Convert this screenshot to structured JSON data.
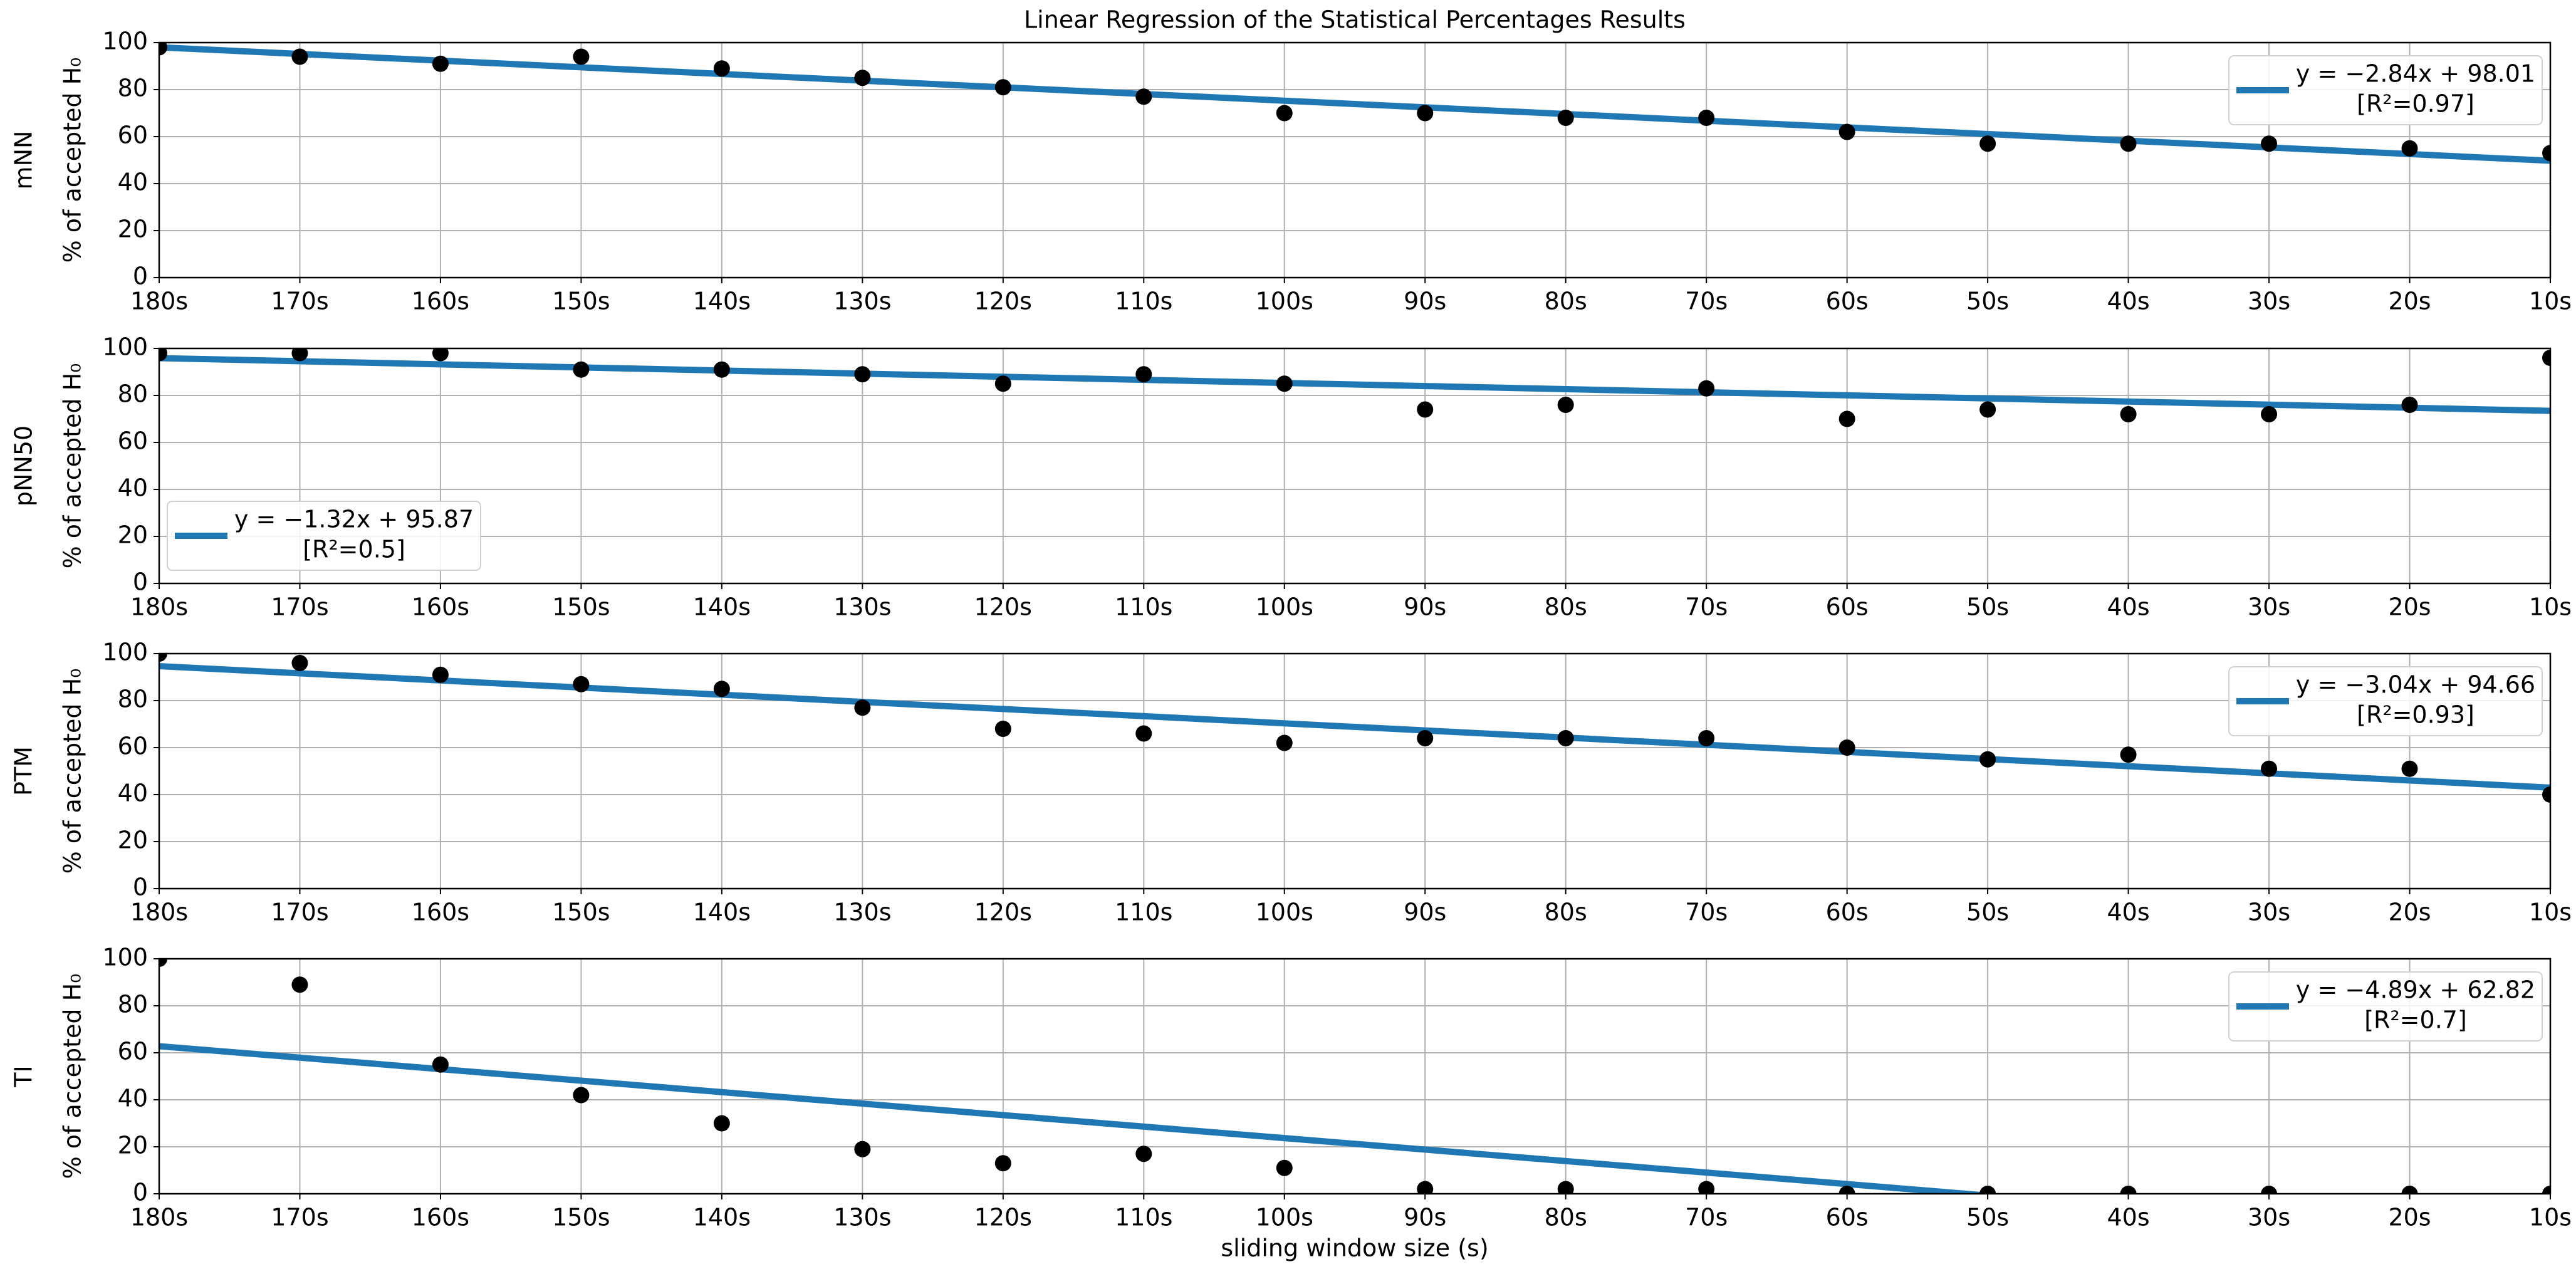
{
  "chart_data": [
    {
      "type": "scatter",
      "title": "Linear Regression of the Statistical Percentages Results",
      "panel_label": "mNN",
      "ylabel": "% of accepted H₀",
      "categories": [
        "180s",
        "170s",
        "160s",
        "150s",
        "140s",
        "130s",
        "120s",
        "110s",
        "100s",
        "90s",
        "80s",
        "70s",
        "60s",
        "50s",
        "40s",
        "30s",
        "20s",
        "10s"
      ],
      "values": [
        98,
        94,
        91,
        94,
        89,
        85,
        81,
        77,
        70,
        70,
        68,
        68,
        62,
        57,
        57,
        57,
        55,
        53
      ],
      "color": "#000000",
      "ylim": [
        0,
        100
      ],
      "yticks": [
        0,
        20,
        40,
        60,
        80,
        100
      ],
      "grid": true,
      "legend": "upper right",
      "fit": {
        "slope": -2.84,
        "intercept": 98.01,
        "color": "#1f77b4",
        "label": "y = −2.84x + 98.01",
        "r2_label": "[R²=0.97]"
      }
    },
    {
      "type": "scatter",
      "panel_label": "pNN50",
      "ylabel": "% of accepted H₀",
      "categories": [
        "180s",
        "170s",
        "160s",
        "150s",
        "140s",
        "130s",
        "120s",
        "110s",
        "100s",
        "90s",
        "80s",
        "70s",
        "60s",
        "50s",
        "40s",
        "30s",
        "20s",
        "10s"
      ],
      "values": [
        98,
        98,
        98,
        91,
        91,
        89,
        85,
        89,
        85,
        74,
        76,
        83,
        70,
        74,
        72,
        72,
        76,
        96
      ],
      "color": "#000000",
      "ylim": [
        0,
        100
      ],
      "yticks": [
        0,
        20,
        40,
        60,
        80,
        100
      ],
      "grid": true,
      "legend": "lower left",
      "fit": {
        "slope": -1.32,
        "intercept": 95.87,
        "color": "#1f77b4",
        "label": "y = −1.32x + 95.87",
        "r2_label": "[R²=0.5]"
      }
    },
    {
      "type": "scatter",
      "panel_label": "PTM",
      "ylabel": "% of accepted H₀",
      "categories": [
        "180s",
        "170s",
        "160s",
        "150s",
        "140s",
        "130s",
        "120s",
        "110s",
        "100s",
        "90s",
        "80s",
        "70s",
        "60s",
        "50s",
        "40s",
        "30s",
        "20s",
        "10s"
      ],
      "values": [
        100,
        96,
        91,
        87,
        85,
        77,
        68,
        66,
        62,
        64,
        64,
        64,
        60,
        55,
        57,
        51,
        51,
        40
      ],
      "color": "#000000",
      "ylim": [
        0,
        100
      ],
      "yticks": [
        0,
        20,
        40,
        60,
        80,
        100
      ],
      "grid": true,
      "legend": "upper right",
      "fit": {
        "slope": -3.04,
        "intercept": 94.66,
        "color": "#1f77b4",
        "label": "y = −3.04x + 94.66",
        "r2_label": "[R²=0.93]"
      }
    },
    {
      "type": "scatter",
      "panel_label": "TI",
      "ylabel": "% of accepted H₀",
      "x_label": "sliding window size (s)",
      "categories": [
        "180s",
        "170s",
        "160s",
        "150s",
        "140s",
        "130s",
        "120s",
        "110s",
        "100s",
        "90s",
        "80s",
        "70s",
        "60s",
        "50s",
        "40s",
        "30s",
        "20s",
        "10s"
      ],
      "values": [
        100,
        89,
        55,
        42,
        30,
        19,
        13,
        17,
        11,
        2,
        2,
        2,
        0,
        0,
        0,
        0,
        0,
        0
      ],
      "color": "#000000",
      "ylim": [
        0,
        100
      ],
      "yticks": [
        0,
        20,
        40,
        60,
        80,
        100
      ],
      "grid": true,
      "legend": "upper right",
      "fit": {
        "slope": -4.89,
        "intercept": 62.82,
        "color": "#1f77b4",
        "label": "y = −4.89x + 62.82",
        "r2_label": "[R²=0.7]"
      }
    }
  ]
}
